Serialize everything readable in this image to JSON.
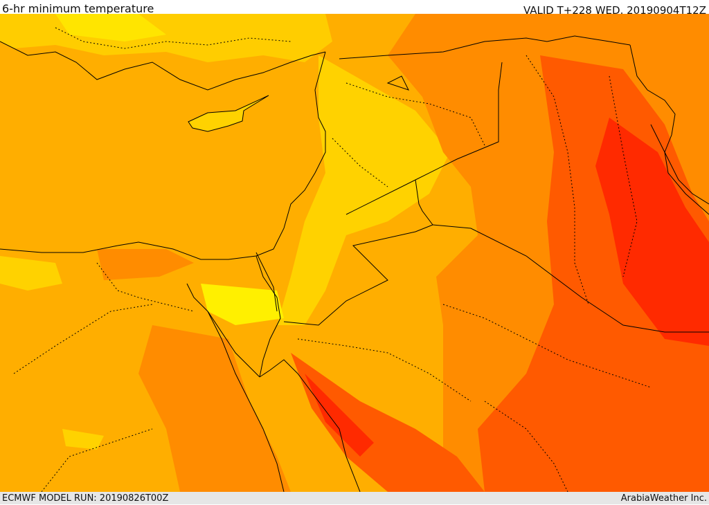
{
  "header": {
    "title": "6-hr minimum temperature",
    "valid": "VALID T+228 WED. 20190904T12Z"
  },
  "footer": {
    "model_run": "ECMWF MODEL RUN: 20190826T00Z",
    "credit": "ArabiaWeather Inc."
  },
  "palette": {
    "light_yellow": "#fff000",
    "yellow": "#ffd200",
    "orange_light": "#ffae00",
    "orange": "#ff8c00",
    "orange_deep": "#ff5a00",
    "red": "#ff2a00",
    "sea": "#ffae00",
    "border": "#000000"
  }
}
